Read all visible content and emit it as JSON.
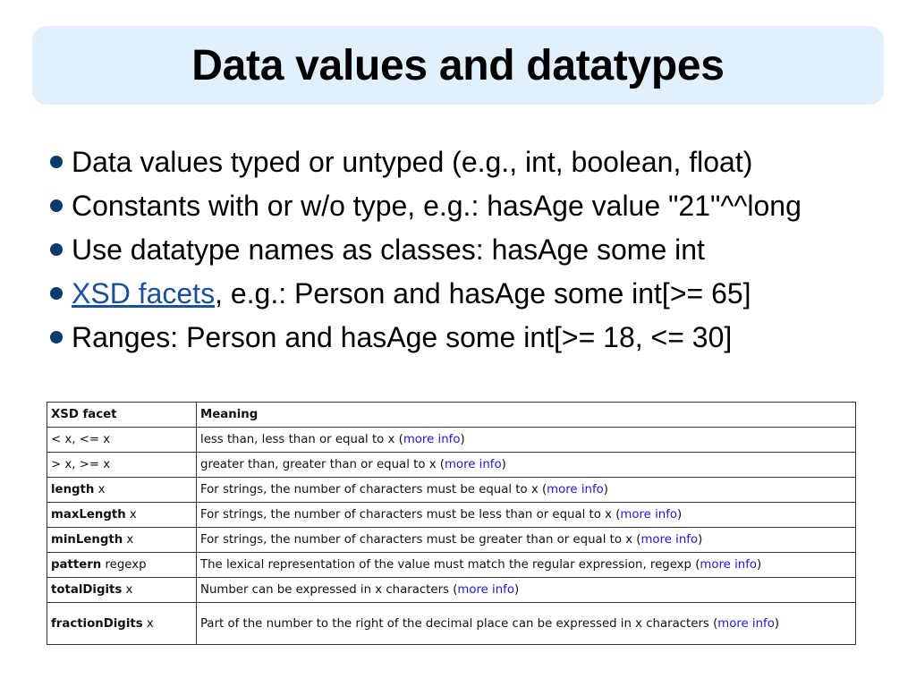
{
  "title": "Data values and datatypes",
  "colors": {
    "title_bg": "#e1f0fc",
    "bullet": "#0b3a6e",
    "link": "#1a4f9c",
    "table_link": "#1a1adf"
  },
  "bullets": [
    {
      "text": "Data values typed or untyped (e.g., int, boolean, float)"
    },
    {
      "text": "Constants with or w/o type, e.g.: hasAge value \"21\"^^long"
    },
    {
      "text": "Use datatype names as classes: hasAge some int"
    },
    {
      "link": "XSD facets",
      "text": ", e.g.: Person and hasAge some int[>= 65]"
    },
    {
      "text": "Ranges: Person and hasAge some int[>= 18, <= 30]"
    }
  ],
  "table": {
    "headers": [
      "XSD facet",
      "Meaning"
    ],
    "rows": [
      {
        "facet_bold": "",
        "facet": "< x, <= x",
        "meaning": "less than, less than or equal to x (",
        "link": "more info",
        "end": ")"
      },
      {
        "facet_bold": "",
        "facet": "> x, >= x",
        "meaning": "greater than, greater than or equal to x (",
        "link": "more info",
        "end": ")"
      },
      {
        "facet_bold": "length",
        "facet": " x",
        "meaning": "For strings, the number of characters must be equal to x (",
        "link": "more info",
        "end": ")"
      },
      {
        "facet_bold": "maxLength",
        "facet": " x",
        "meaning": "For strings, the number of characters must be less than or equal to x (",
        "link": "more info",
        "end": ")"
      },
      {
        "facet_bold": "minLength",
        "facet": " x",
        "meaning": "For strings, the number of characters must be greater than or equal to x (",
        "link": "more info",
        "end": ")"
      },
      {
        "facet_bold": "pattern",
        "facet": " regexp",
        "meaning": "The lexical representation of the value must match the regular expression, regexp (",
        "link": "more info",
        "end": ")"
      },
      {
        "facet_bold": "totalDigits",
        "facet": " x",
        "meaning": "Number can be expressed in x characters (",
        "link": "more info",
        "end": ")"
      },
      {
        "facet_bold": "fractionDigits",
        "facet": " x",
        "meaning": "Part of the number to the right of the decimal place can be expressed in x characters (",
        "link": "more info",
        "end": ")"
      }
    ]
  }
}
